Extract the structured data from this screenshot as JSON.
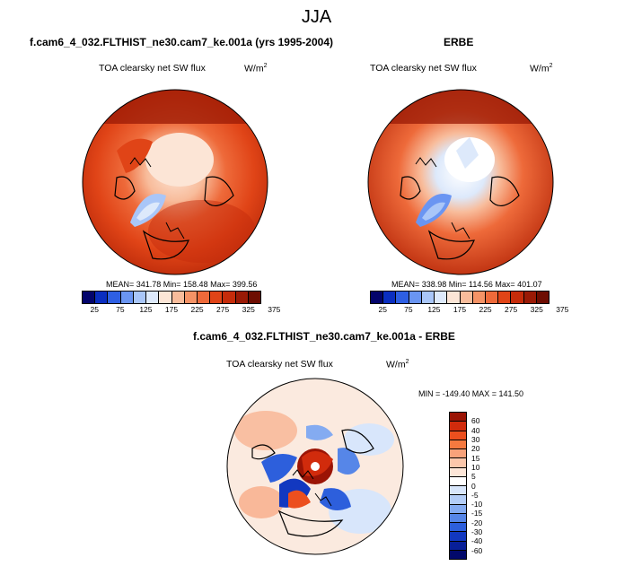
{
  "season": "JJA",
  "panels": [
    {
      "title": "f.cam6_4_032.FLTHIST_ne30.cam7_ke.001a (yrs 1995-2004)",
      "variable": "TOA clearsky net SW flux",
      "units": "W/m",
      "units_sup": "2",
      "stats": "MEAN= 341.78  Min= 158.48  Max= 399.56"
    },
    {
      "title": "ERBE",
      "variable": "TOA clearsky net SW flux",
      "units": "W/m",
      "units_sup": "2",
      "stats": "MEAN= 338.98  Min= 114.56  Max= 401.07"
    },
    {
      "title": "f.cam6_4_032.FLTHIST_ne30.cam7_ke.001a - ERBE",
      "variable": "TOA clearsky net SW flux",
      "units": "W/m",
      "units_sup": "2",
      "stats": "MIN = -149.40  MAX = 141.50"
    }
  ],
  "colorbar_abs": {
    "colors": [
      "#03046b",
      "#0a2ec0",
      "#2e5fe3",
      "#6a95f2",
      "#a9c6f8",
      "#dde9fb",
      "#fce5d6",
      "#f8bc9b",
      "#f59366",
      "#ee6a3a",
      "#e04417",
      "#c52c0b",
      "#9a1a06",
      "#6e0d02"
    ],
    "labels": [
      "25",
      "75",
      "125",
      "175",
      "225",
      "275",
      "325",
      "375"
    ]
  },
  "colorbar_diff": {
    "colors": [
      "#9b1405",
      "#d12b0c",
      "#ec4f1e",
      "#f5793f",
      "#f8a27a",
      "#fbc7ab",
      "#fde6d8",
      "#ffffff",
      "#d8e6fb",
      "#b3cdf7",
      "#84abf1",
      "#5686e8",
      "#2d5fdc",
      "#1238c0",
      "#081f98",
      "#02096b"
    ],
    "labels": [
      "60",
      "40",
      "30",
      "20",
      "15",
      "10",
      "5",
      "0",
      "-5",
      "-10",
      "-15",
      "-20",
      "-30",
      "-40",
      "-60"
    ]
  },
  "icons": [
    "polar-stereographic-map"
  ]
}
